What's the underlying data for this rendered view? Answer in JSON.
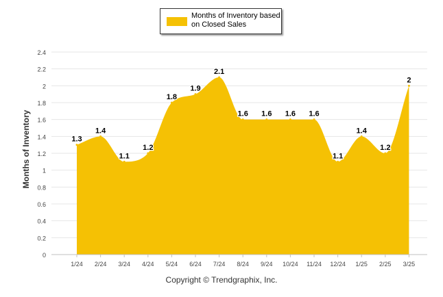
{
  "chart_data": {
    "type": "area",
    "title": "",
    "xlabel": "",
    "ylabel": "Months of Inventory",
    "categories": [
      "1/24",
      "2/24",
      "3/24",
      "4/24",
      "5/24",
      "6/24",
      "7/24",
      "8/24",
      "9/24",
      "10/24",
      "11/24",
      "12/24",
      "1/25",
      "2/25",
      "3/25"
    ],
    "series": [
      {
        "name": "Months of Inventory based on Closed Sales",
        "values": [
          1.3,
          1.4,
          1.1,
          1.2,
          1.8,
          1.9,
          2.1,
          1.6,
          1.6,
          1.6,
          1.6,
          1.1,
          1.4,
          1.2,
          2
        ]
      }
    ],
    "data_labels": [
      "1.3",
      "1.4",
      "1.1",
      "1.2",
      "1.8",
      "1.9",
      "2.1",
      "1.6",
      "1.6",
      "1.6",
      "1.6",
      "1.1",
      "1.4",
      "1.2",
      "2"
    ],
    "ylim": [
      0,
      2.4
    ],
    "yticks": [
      0,
      0.2,
      0.4,
      0.6,
      0.8,
      1,
      1.2,
      1.4,
      1.6,
      1.8,
      2,
      2.2,
      2.4
    ],
    "ytick_labels": [
      "0",
      "0.2",
      "0.4",
      "0.6",
      "0.8",
      "1",
      "1.2",
      "1.4",
      "1.6",
      "1.8",
      "2",
      "2.2",
      "2.4"
    ],
    "grid": true,
    "legend_position": "top-center",
    "colors": {
      "fill": "#f5c104",
      "grid": "#e6e6e6",
      "axis": "#c0c0c0"
    }
  },
  "legend": {
    "line1": "Months of Inventory based",
    "line2": "on Closed Sales"
  },
  "footer": "Copyright © Trendgraphix, Inc."
}
